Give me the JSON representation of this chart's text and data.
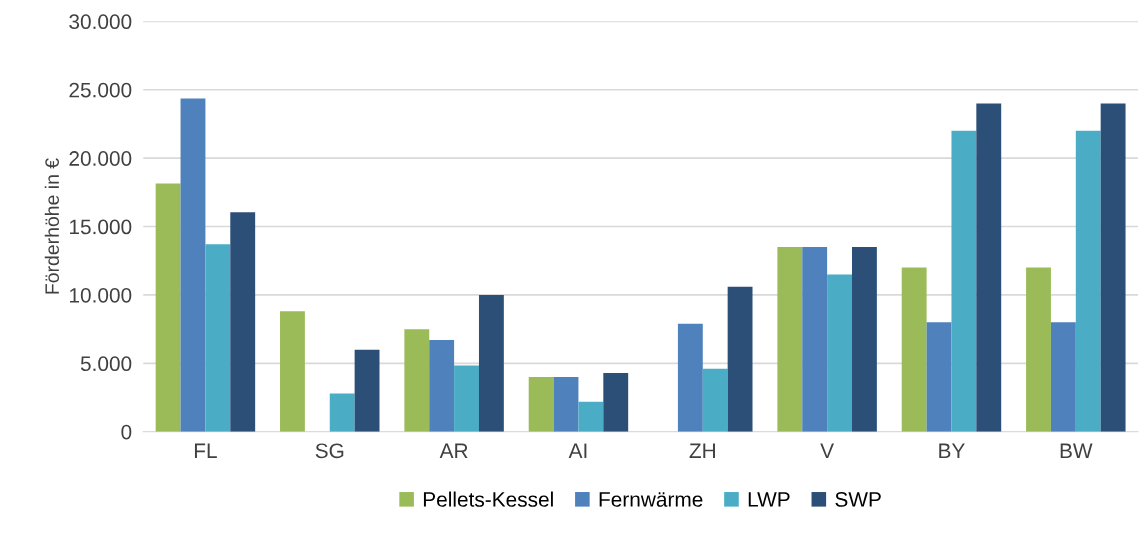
{
  "chart_data": {
    "type": "bar",
    "ylabel": "Förderhöhe in €",
    "categories": [
      "FL",
      "SG",
      "AR",
      "AI",
      "ZH",
      "V",
      "BY",
      "BW"
    ],
    "series": [
      {
        "name": "Pellets-Kessel",
        "color": "#9bbb59",
        "values": [
          18150,
          8800,
          7500,
          4000,
          null,
          13500,
          12000,
          12000
        ]
      },
      {
        "name": "Fernwärme",
        "color": "#4f81bd",
        "values": [
          24350,
          null,
          6700,
          4000,
          7900,
          13500,
          8000,
          8000
        ]
      },
      {
        "name": "LWP",
        "color": "#4bacc6",
        "values": [
          13700,
          2800,
          4850,
          2200,
          4600,
          11500,
          22000,
          22000
        ]
      },
      {
        "name": "SWP",
        "color": "#2c4f77",
        "values": [
          16050,
          6000,
          10000,
          4300,
          10600,
          13500,
          24000,
          24000
        ]
      }
    ],
    "ylim": [
      0,
      30000
    ],
    "yticks": [
      {
        "value": 0,
        "label": "0"
      },
      {
        "value": 5000,
        "label": "5.000"
      },
      {
        "value": 10000,
        "label": "10.000"
      },
      {
        "value": 15000,
        "label": "15.000"
      },
      {
        "value": 20000,
        "label": "20.000"
      },
      {
        "value": 25000,
        "label": "25.000"
      },
      {
        "value": 30000,
        "label": "30.000"
      }
    ],
    "grid": "y",
    "legend": "bottom"
  }
}
